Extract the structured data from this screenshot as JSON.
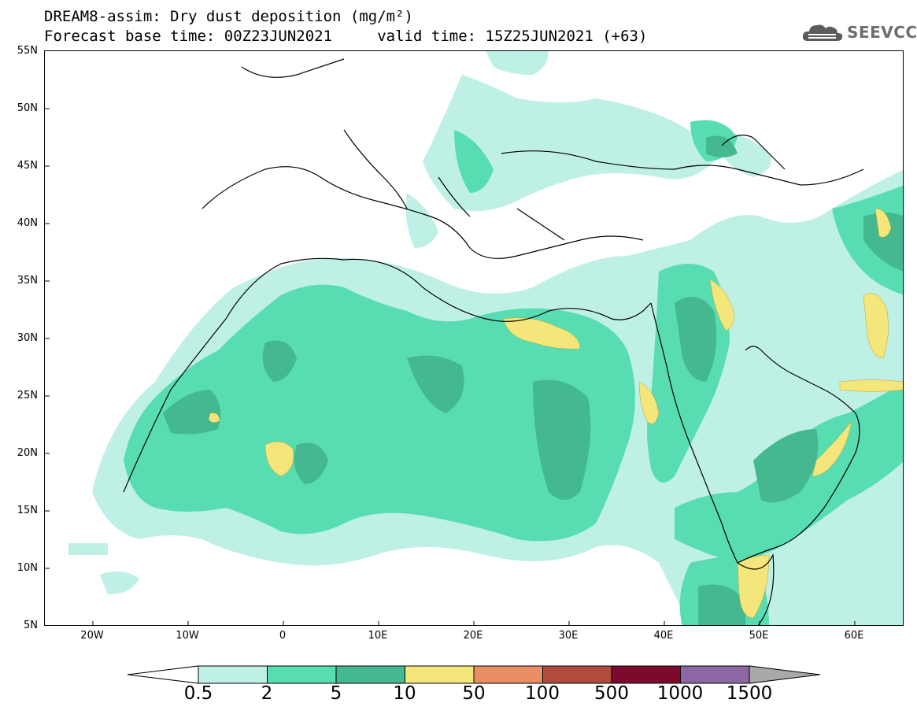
{
  "title_line1": "DREAM8-assim: Dry dust deposition (mg/m²)",
  "title_line2": "Forecast base time: 00Z23JUN2021     valid time: 15Z25JUN2021 (+63)",
  "logo": {
    "text": "SEEVCCC",
    "icon": "cloud-icon"
  },
  "map": {
    "lon_range": [
      -25,
      65
    ],
    "lat_range": [
      5,
      55
    ],
    "lat_labels": [
      "55N",
      "50N",
      "45N",
      "40N",
      "35N",
      "30N",
      "25N",
      "20N",
      "15N",
      "10N",
      "5N"
    ],
    "lon_labels": [
      "20W",
      "10W",
      "0",
      "10E",
      "20E",
      "30E",
      "40E",
      "50E",
      "60E"
    ]
  },
  "colorbar": {
    "labels": [
      "0.5",
      "2",
      "5",
      "10",
      "50",
      "100",
      "500",
      "1000",
      "1500"
    ],
    "colors": [
      "#bff0e6",
      "#58ddb3",
      "#44b98f",
      "#f4e67b",
      "#ea8e63",
      "#b04c3e",
      "#7d0a2d",
      "#8d67a3",
      "#a9a9a9"
    ]
  }
}
